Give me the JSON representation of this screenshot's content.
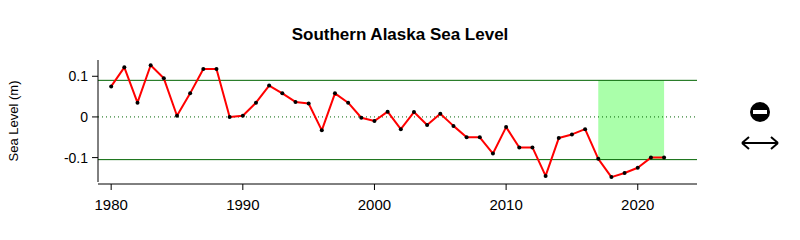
{
  "chart_data": {
    "type": "line",
    "title": "Southern Alaska Sea Level",
    "y_label": "Sea Level (m)",
    "x": [
      1980,
      1981,
      1982,
      1983,
      1984,
      1985,
      1986,
      1987,
      1988,
      1989,
      1990,
      1991,
      1992,
      1993,
      1994,
      1995,
      1996,
      1997,
      1998,
      1999,
      2000,
      2001,
      2002,
      2003,
      2004,
      2005,
      2006,
      2007,
      2008,
      2009,
      2010,
      2011,
      2012,
      2013,
      2014,
      2015,
      2016,
      2017,
      2018,
      2019,
      2020,
      2021,
      2022
    ],
    "values": [
      0.075,
      0.122,
      0.035,
      0.127,
      0.095,
      0.003,
      0.058,
      0.118,
      0.118,
      0.0,
      0.003,
      0.035,
      0.077,
      0.058,
      0.037,
      0.033,
      -0.033,
      0.058,
      0.035,
      -0.002,
      -0.01,
      0.013,
      -0.03,
      0.012,
      -0.02,
      0.008,
      -0.022,
      -0.05,
      -0.05,
      -0.09,
      -0.025,
      -0.075,
      -0.075,
      -0.145,
      -0.052,
      -0.043,
      -0.03,
      -0.103,
      -0.148,
      -0.138,
      -0.125,
      -0.1,
      -0.1
    ],
    "color": "#ff0000",
    "marker": "circle",
    "xlim": [
      1979,
      2024.5
    ],
    "ylim": [
      -0.16,
      0.14
    ],
    "xticks": [
      1980,
      1990,
      2000,
      2010,
      2020
    ],
    "yticks": [
      -0.1,
      0,
      0.1
    ],
    "upper_sd": 0.09,
    "mean": 0,
    "lower_sd": -0.105,
    "highlight_x": [
      2017,
      2022
    ]
  }
}
